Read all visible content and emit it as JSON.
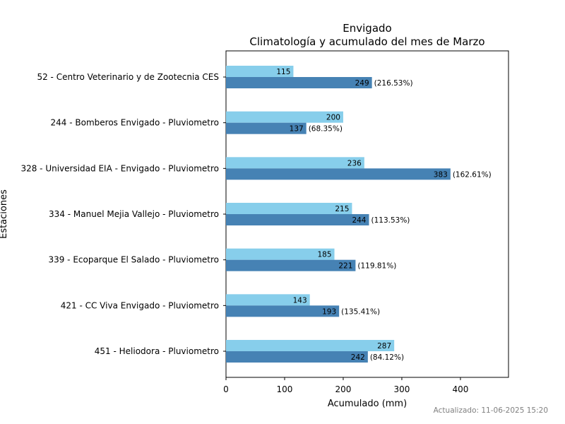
{
  "chart_data": {
    "type": "bar",
    "orientation": "horizontal",
    "title": "Envigado",
    "subtitle": "Climatología y acumulado del mes de Marzo",
    "xlabel": "Acumulado (mm)",
    "ylabel": "Estaciones",
    "xlim": [
      0,
      482
    ],
    "xticks": [
      0,
      100,
      200,
      300,
      400
    ],
    "grid": false,
    "categories": [
      "52 - Centro Veterinario y de Zootecnia CES",
      "244 - Bomberos Envigado - Pluviometro",
      "328 - Universidad EIA - Envigado - Pluviometro",
      "334 - Manuel Mejia Vallejo - Pluviometro",
      "339 - Ecoparque El Salado - Pluviometro",
      "421 - CC Viva Envigado - Pluviometro",
      "451 - Heliodora - Pluviometro"
    ],
    "series": [
      {
        "color": "#87CEEB",
        "values": [
          115,
          200,
          236,
          215,
          185,
          143,
          287
        ]
      },
      {
        "color": "#4682B4",
        "values": [
          249,
          137,
          383,
          244,
          221,
          193,
          242
        ],
        "percent_labels": [
          "(216.53%)",
          "(68.35%)",
          "(162.61%)",
          "(113.53%)",
          "(119.81%)",
          "(135.41%)",
          "(84.12%)"
        ]
      }
    ]
  },
  "footer": "Actualizado: 11-06-2025 15:20"
}
